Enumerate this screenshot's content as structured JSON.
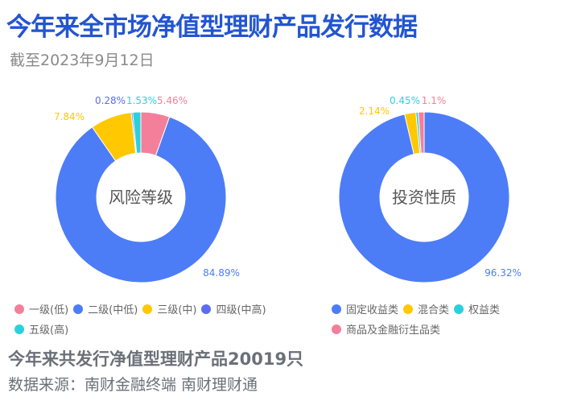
{
  "title": "今年来全市场净值型理财产品发行数据",
  "subtitle": "截至2023年9月12日",
  "total_text": "今年来共发行净值型理财产品20019只",
  "source_text": "数据来源：南财金融终端 南财理财通",
  "chart_data": [
    {
      "type": "pie",
      "variant": "donut",
      "center_label": "风险等级",
      "legend_position": "bottom",
      "categories": [
        "一级(低)",
        "二级(中低)",
        "三级(中)",
        "四级(中高)",
        "五级(高)"
      ],
      "values": [
        5.46,
        84.89,
        7.84,
        0.28,
        1.53
      ],
      "labels": [
        "5.46%",
        "84.89%",
        "7.84%",
        "0.28%",
        "1.53%"
      ],
      "colors": [
        "#f47f9a",
        "#4d7cf7",
        "#ffc800",
        "#5b6cf0",
        "#2bd0dc"
      ]
    },
    {
      "type": "pie",
      "variant": "donut",
      "center_label": "投资性质",
      "legend_position": "bottom",
      "categories": [
        "固定收益类",
        "混合类",
        "权益类",
        "商品及金融衍生品类"
      ],
      "values": [
        96.32,
        2.14,
        0.45,
        1.1
      ],
      "labels": [
        "96.32%",
        "2.14%",
        "0.45%",
        "1.1%"
      ],
      "colors": [
        "#4d7cf7",
        "#ffc800",
        "#2bd0dc",
        "#f47f9a"
      ]
    }
  ]
}
